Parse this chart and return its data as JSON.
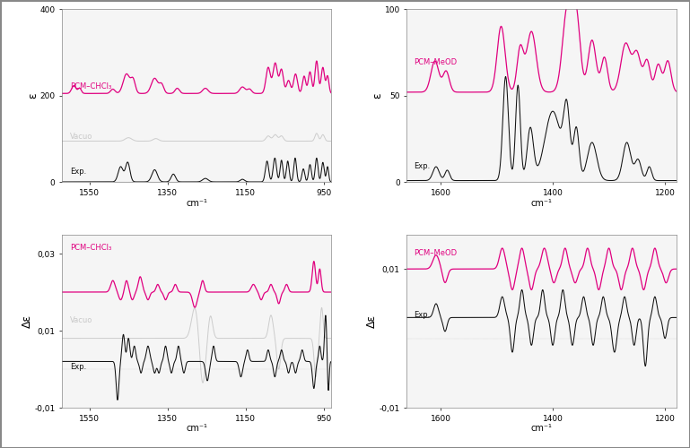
{
  "fig_width": 7.69,
  "fig_height": 5.0,
  "bg_color": "#ffffff",
  "panel_bg": "#f5f5f5",
  "magenta": "#e0007f",
  "gray": "#c8c8c8",
  "black": "#111111",
  "ir_chcl3": {
    "xlim": [
      1620,
      930
    ],
    "ylim": [
      0,
      400
    ],
    "yticks": [
      0,
      200,
      400
    ],
    "xticks": [
      1550,
      1350,
      1150,
      950
    ],
    "ylabel": "ε",
    "xlabel": "cm⁻¹",
    "label_pcm": "PCM–CHCl₃",
    "label_vacuo": "Vacuo",
    "label_exp": "Exp."
  },
  "ir_meod": {
    "xlim": [
      1660,
      1180
    ],
    "ylim": [
      0,
      100
    ],
    "yticks": [
      0,
      50,
      100
    ],
    "xticks": [
      1600,
      1400,
      1200
    ],
    "ylabel": "ε",
    "xlabel": "cm⁻¹",
    "label_pcm": "PCM–MeOD",
    "label_exp": "Exp."
  },
  "vcd_chcl3": {
    "xlim": [
      1620,
      930
    ],
    "ylim": [
      -0.01,
      0.035
    ],
    "yticks": [
      -0.01,
      0.01,
      0.03
    ],
    "ytick_labels": [
      "-0,01",
      "0,01",
      "0,03"
    ],
    "xticks": [
      1550,
      1350,
      1150,
      950
    ],
    "ylabel": "Δε",
    "xlabel": "cm⁻¹",
    "label_pcm": "PCM–CHCl₃",
    "label_vacuo": "Vacuo",
    "label_exp": "Exp."
  },
  "vcd_meod": {
    "xlim": [
      1660,
      1180
    ],
    "ylim": [
      -0.01,
      0.015
    ],
    "yticks": [
      -0.01,
      0.01
    ],
    "ytick_labels": [
      "-0,01",
      "0,01"
    ],
    "xticks": [
      1600,
      1400,
      1200
    ],
    "ylabel": "Δε",
    "xlabel": "cm⁻¹",
    "label_pcm": "PCM–MeOD",
    "label_exp": "Exp."
  }
}
